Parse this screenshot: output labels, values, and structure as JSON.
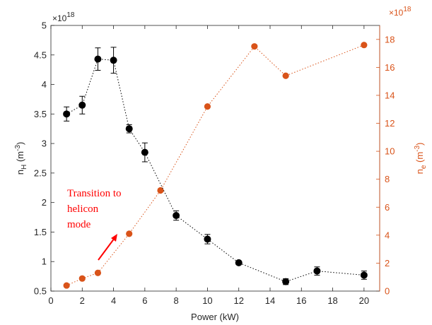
{
  "chart_data": {
    "type": "scatter",
    "xlabel": "Power (kW)",
    "x_ticks": [
      "0",
      "2",
      "4",
      "6",
      "8",
      "10",
      "12",
      "14",
      "16",
      "18",
      "20"
    ],
    "xlim": [
      0,
      21
    ],
    "left_axis": {
      "label_main": "n",
      "label_sub": "H",
      "label_unit_open": " (m",
      "label_unit_sup": "-3",
      "label_unit_close": ")",
      "multiplier_base": "×10",
      "multiplier_exp": "18",
      "ylim": [
        0.5,
        5
      ],
      "ticks": [
        "0.5",
        "1",
        "1.5",
        "2",
        "2.5",
        "3",
        "3.5",
        "4",
        "4.5",
        "5"
      ],
      "color": "#262626"
    },
    "right_axis": {
      "label_main": "n",
      "label_sub": "e",
      "label_unit_open": " (m",
      "label_unit_sup": "-3",
      "label_unit_close": ")",
      "multiplier_base": "×10",
      "multiplier_exp": "18",
      "ylim": [
        0,
        19
      ],
      "ticks": [
        "0",
        "2",
        "4",
        "6",
        "8",
        "10",
        "12",
        "14",
        "16",
        "18"
      ],
      "color": "#d95319"
    },
    "series": [
      {
        "axis": "left",
        "color": "#000000",
        "line": "dotted",
        "x": [
          1,
          2,
          3,
          4,
          5,
          6,
          8,
          10,
          12,
          15,
          17,
          20
        ],
        "y": [
          3.5,
          3.65,
          4.43,
          4.41,
          3.25,
          2.85,
          1.78,
          1.38,
          0.98,
          0.66,
          0.84,
          0.77
        ],
        "err": [
          0.12,
          0.15,
          0.19,
          0.22,
          0.07,
          0.16,
          0.08,
          0.08,
          0.03,
          0.05,
          0.07,
          0.07
        ]
      },
      {
        "axis": "right",
        "color": "#d95319",
        "line": "dotted",
        "x": [
          1,
          2,
          3,
          5,
          7,
          10,
          13,
          15,
          20
        ],
        "y": [
          0.4,
          0.9,
          1.3,
          4.1,
          7.2,
          13.2,
          17.5,
          15.4,
          17.6
        ]
      }
    ],
    "annotation": {
      "lines": [
        "Transition to",
        "helicon",
        "mode"
      ],
      "color": "#ff0000"
    },
    "grid": false
  }
}
